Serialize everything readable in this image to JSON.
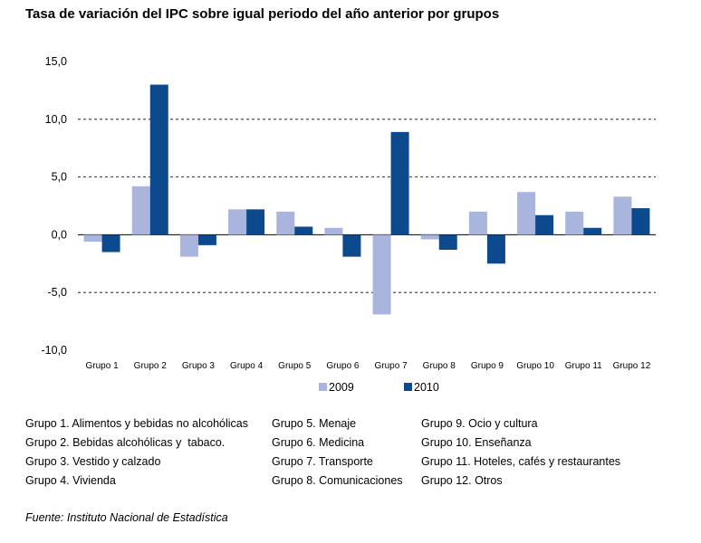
{
  "chart_data": {
    "type": "bar",
    "title": "Tasa de variación del IPC sobre igual periodo del año anterior por grupos",
    "categories": [
      "Grupo 1",
      "Grupo 2",
      "Grupo 3",
      "Grupo 4",
      "Grupo 5",
      "Grupo 6",
      "Grupo 7",
      "Grupo 8",
      "Grupo 9",
      "Grupo 10",
      "Grupo 11",
      "Grupo 12"
    ],
    "series": [
      {
        "name": "2009",
        "color": "#a9b5dc",
        "values": [
          -0.6,
          4.2,
          -1.9,
          2.2,
          2.0,
          0.6,
          -6.9,
          -0.4,
          2.0,
          3.7,
          2.0,
          3.3
        ]
      },
      {
        "name": "2010",
        "color": "#0d4a8d",
        "values": [
          -1.5,
          13.0,
          -0.9,
          2.2,
          0.7,
          -1.9,
          8.9,
          -1.3,
          -2.5,
          1.7,
          0.6,
          2.3
        ]
      }
    ],
    "ylim": [
      -10,
      15
    ],
    "yticks": [
      "15,0",
      "10,0",
      "5,0",
      "0,0",
      "-5,0",
      "-10,0"
    ],
    "ytick_values": [
      15,
      10,
      5,
      0,
      -5,
      -10
    ],
    "grid": "dashed at 10, 5, -5",
    "legend": "bottom-center",
    "xlabel": "",
    "ylabel": ""
  },
  "group_notes": {
    "col1": [
      "Grupo 1. Alimentos y bebidas no alcohólicas",
      "Grupo 2. Bebidas alcohólicas y  tabaco.",
      "Grupo 3. Vestido y calzado",
      "Grupo 4. Vivienda"
    ],
    "col2": [
      "Grupo 5. Menaje",
      "Grupo 6. Medicina",
      "Grupo 7. Transporte",
      "Grupo 8. Comunicaciones"
    ],
    "col3": [
      "Grupo 9. Ocio y cultura",
      "Grupo 10. Enseñanza",
      "Grupo 11. Hoteles, cafés y restaurantes",
      "Grupo 12. Otros"
    ]
  },
  "source": "Fuente: Instituto Nacional de Estadística"
}
